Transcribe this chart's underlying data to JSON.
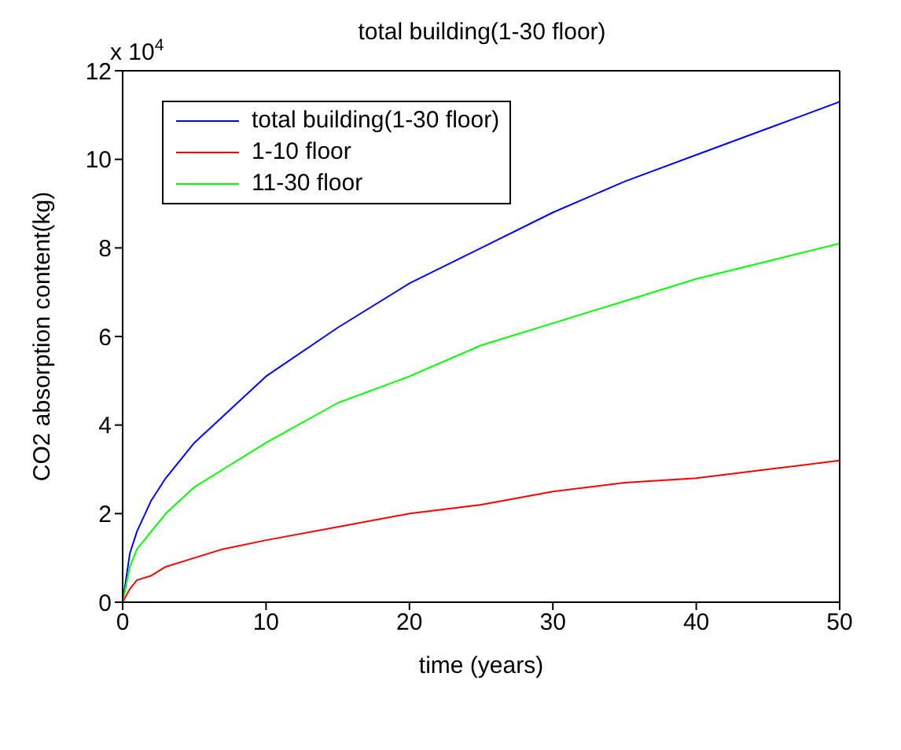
{
  "chart_data": {
    "type": "line",
    "title": "total building(1-30 floor)",
    "xlabel": "time (years)",
    "ylabel": "CO2 absorption content(kg)",
    "annotations": [
      "x 10$^{4}$"
    ],
    "x": [
      0,
      0.5,
      1,
      2,
      3,
      5,
      7,
      10,
      15,
      20,
      25,
      30,
      35,
      40,
      45,
      50
    ],
    "series": [
      {
        "name": "total building(1-30 floor)",
        "color": "#0000ff",
        "values": [
          0,
          1.1,
          1.6,
          2.3,
          2.8,
          3.6,
          4.2,
          5.1,
          6.2,
          7.2,
          8.0,
          8.8,
          9.5,
          10.1,
          10.7,
          11.3
        ]
      },
      {
        "name": "1-10 floor",
        "color": "#ff0000",
        "values": [
          0,
          0.3,
          0.5,
          0.6,
          0.8,
          1.0,
          1.2,
          1.4,
          1.7,
          2.0,
          2.2,
          2.5,
          2.7,
          2.8,
          3.0,
          3.2
        ]
      },
      {
        "name": "11-30 floor",
        "color": "#00ff00",
        "values": [
          0,
          0.8,
          1.2,
          1.6,
          2.0,
          2.6,
          3.0,
          3.6,
          4.5,
          5.1,
          5.8,
          6.3,
          6.8,
          7.3,
          7.7,
          8.1
        ]
      }
    ],
    "xlim": [
      0,
      50
    ],
    "xticks": [
      0,
      10,
      20,
      30,
      40,
      50
    ],
    "ylim": [
      0,
      12
    ],
    "yticks": [
      0,
      2,
      4,
      6,
      8,
      10,
      12
    ],
    "grid": false,
    "legend": "top left",
    "marker": "none",
    "line_style": "solid"
  }
}
